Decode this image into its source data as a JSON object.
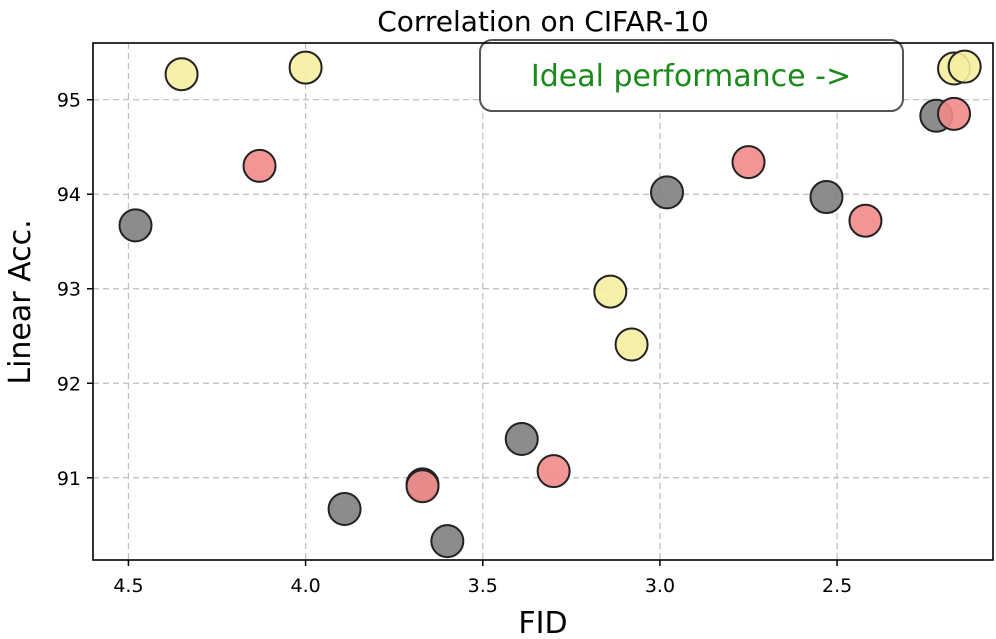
{
  "chart_data": {
    "type": "scatter",
    "title": "Correlation on CIFAR-10",
    "xlabel": "FID",
    "ylabel": "Linear Acc.",
    "x_inverted": true,
    "xlim": [
      4.6,
      2.06
    ],
    "ylim": [
      90.13,
      95.6
    ],
    "xticks": [
      "4.5",
      "4.0",
      "3.5",
      "3.0",
      "2.5"
    ],
    "xtick_values": [
      4.5,
      4.0,
      3.5,
      3.0,
      2.5
    ],
    "yticks": [
      "91",
      "92",
      "93",
      "94",
      "95"
    ],
    "ytick_values": [
      91,
      92,
      93,
      94,
      95
    ],
    "grid": true,
    "annotation": {
      "text": "Ideal performance ->",
      "color": "#1a8a1a",
      "location": "top-right",
      "box_edge_color": "#555555"
    },
    "series": [
      {
        "color": "#808080",
        "points": [
          {
            "x": 4.48,
            "y": 93.67
          },
          {
            "x": 3.89,
            "y": 90.67
          },
          {
            "x": 3.67,
            "y": 90.93
          },
          {
            "x": 3.6,
            "y": 90.33
          },
          {
            "x": 3.39,
            "y": 91.41
          },
          {
            "x": 2.98,
            "y": 94.02
          },
          {
            "x": 2.53,
            "y": 93.97
          },
          {
            "x": 2.22,
            "y": 94.83
          }
        ]
      },
      {
        "color": "#f08a8a",
        "points": [
          {
            "x": 4.13,
            "y": 94.3
          },
          {
            "x": 3.67,
            "y": 90.91
          },
          {
            "x": 3.3,
            "y": 91.07
          },
          {
            "x": 2.75,
            "y": 94.34
          },
          {
            "x": 2.42,
            "y": 93.72
          },
          {
            "x": 2.17,
            "y": 94.85
          }
        ]
      },
      {
        "color": "#f5eea0",
        "points": [
          {
            "x": 4.35,
            "y": 95.27
          },
          {
            "x": 4.0,
            "y": 95.34
          },
          {
            "x": 3.14,
            "y": 92.97
          },
          {
            "x": 3.08,
            "y": 92.41
          },
          {
            "x": 2.17,
            "y": 95.33
          },
          {
            "x": 2.14,
            "y": 95.35
          }
        ]
      }
    ]
  }
}
